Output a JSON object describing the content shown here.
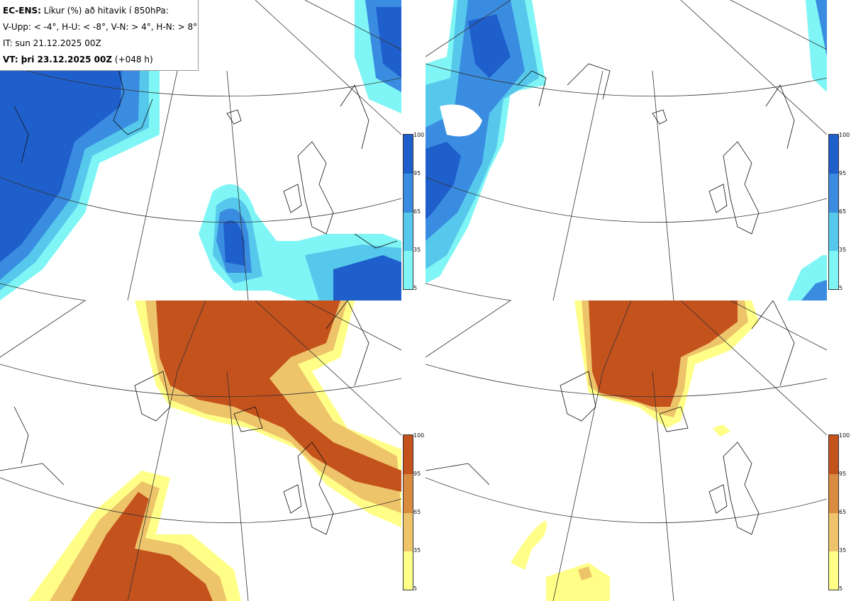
{
  "info": {
    "line1_bold": "EC-ENS:",
    "line1_rest": " Líkur (%) að hitavik í 850hPa:",
    "line2": "V-Upp: < -4°, H-U: < -8°, V-N: > 4°, H-N: > 8°",
    "line3": "IT: sun 21.12.2025 00Z",
    "line4_bold": "VT: þri 23.12.2025 00Z",
    "line4_rest": " (+048 h)"
  },
  "colorbars": {
    "ticks": [
      "100",
      "95",
      "65",
      "35",
      "5"
    ],
    "cold_colors": [
      "#1f5fcc",
      "#3a8ce0",
      "#56c8ec",
      "#7ff5f5"
    ],
    "warm_colors": [
      "#c4521d",
      "#d98b3f",
      "#eec46a",
      "#ffff88"
    ]
  }
}
